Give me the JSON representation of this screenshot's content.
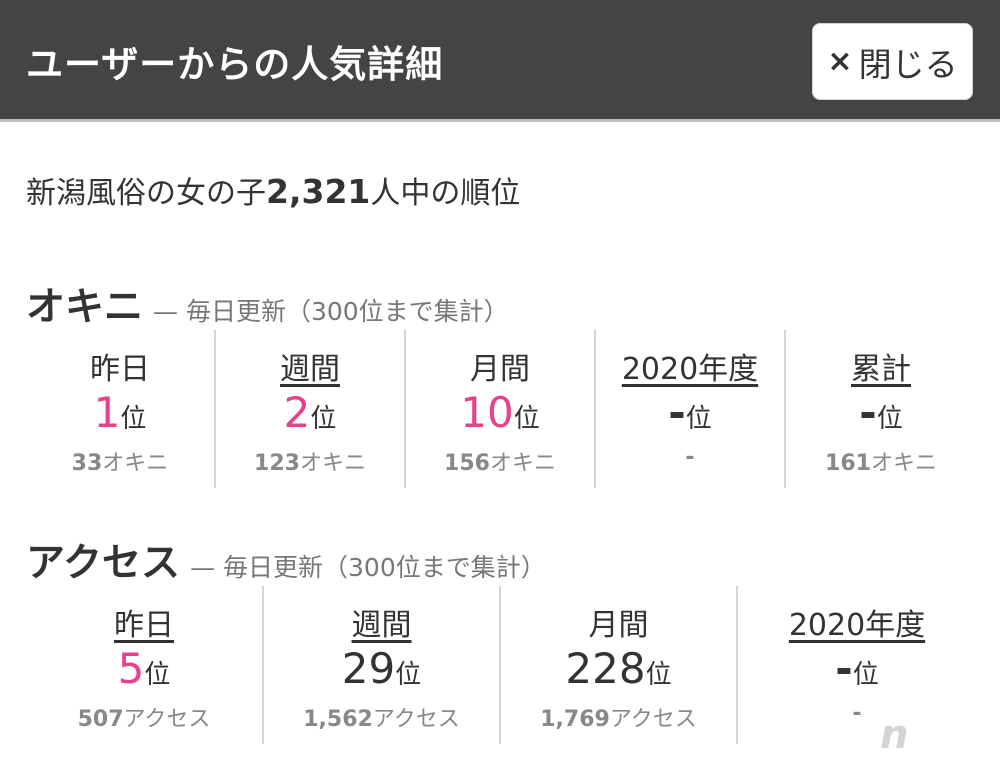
{
  "header": {
    "title": "ユーザーからの人気詳細",
    "close_label": "閉じる"
  },
  "summary": {
    "prefix": "新潟風俗の女の子",
    "count": "2,321",
    "suffix": "人中の順位"
  },
  "okini": {
    "title": "オキニ",
    "note": "— 毎日更新（300位まで集計）",
    "cells": [
      {
        "label": "昨日",
        "rank": "1",
        "unit": "位",
        "sub_num": "33",
        "sub_unit": "オキニ"
      },
      {
        "label": "週間",
        "rank": "2",
        "unit": "位",
        "sub_num": "123",
        "sub_unit": "オキニ"
      },
      {
        "label": "月間",
        "rank": "10",
        "unit": "位",
        "sub_num": "156",
        "sub_unit": "オキニ"
      },
      {
        "label": "2020年度",
        "rank": "-",
        "unit": "位",
        "sub_num": "-",
        "sub_unit": ""
      },
      {
        "label": "累計",
        "rank": "-",
        "unit": "位",
        "sub_num": "161",
        "sub_unit": "オキニ"
      }
    ]
  },
  "access": {
    "title": "アクセス",
    "note": "— 毎日更新（300位まで集計）",
    "cells": [
      {
        "label": "昨日",
        "rank": "5",
        "unit": "位",
        "sub_num": "507",
        "sub_unit": "アクセス"
      },
      {
        "label": "週間",
        "rank": "29",
        "unit": "位",
        "sub_num": "1,562",
        "sub_unit": "アクセス"
      },
      {
        "label": "月間",
        "rank": "228",
        "unit": "位",
        "sub_num": "1,769",
        "sub_unit": "アクセス"
      },
      {
        "label": "2020年度",
        "rank": "-",
        "unit": "位",
        "sub_num": "-",
        "sub_unit": ""
      }
    ]
  },
  "colors": {
    "header_bg": "#444444",
    "rank_highlight": "#e8408a"
  },
  "watermark": "n"
}
